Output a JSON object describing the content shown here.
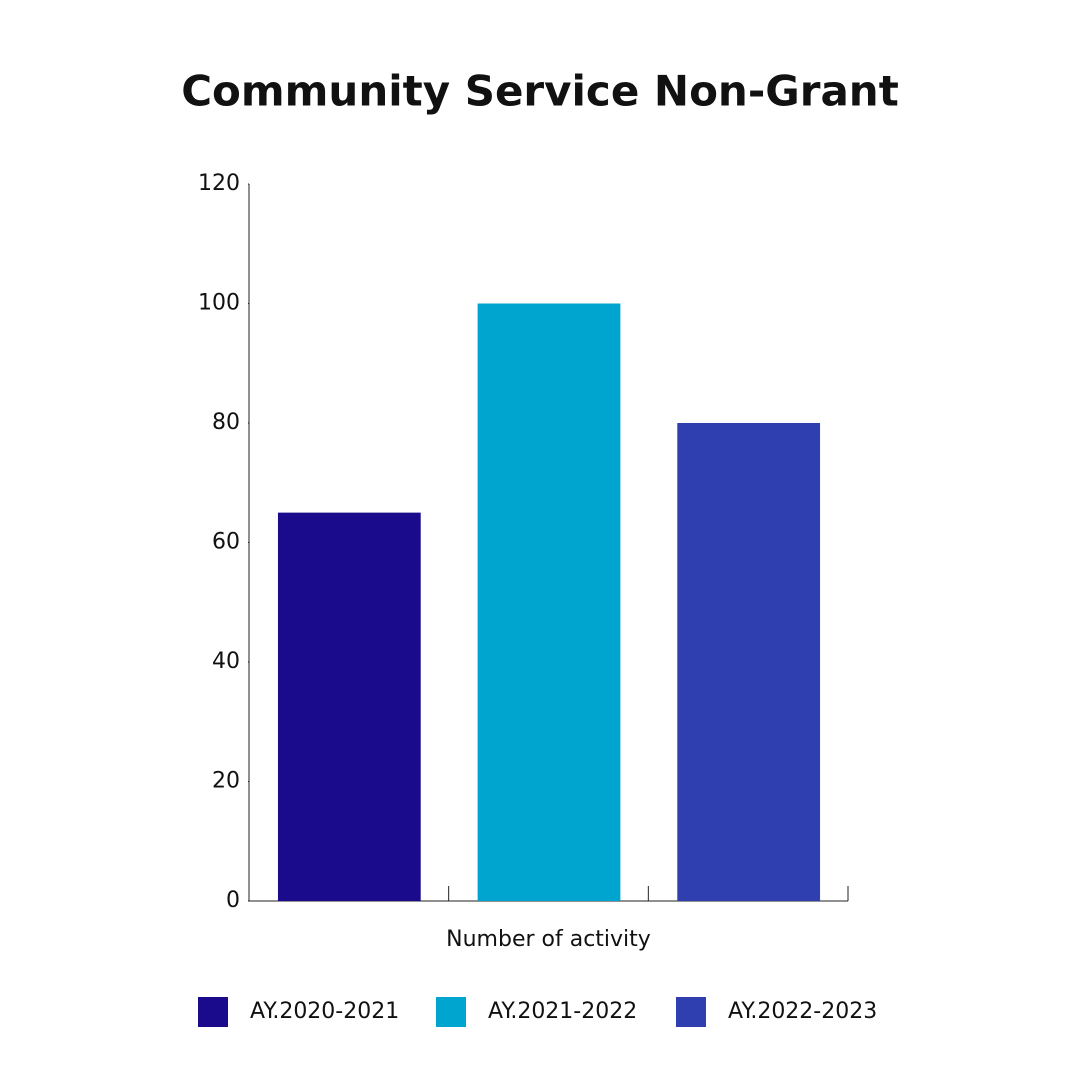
{
  "chart_data": {
    "type": "bar",
    "title": "Community Service Non-Grant",
    "categories": [
      "Number of activity"
    ],
    "series": [
      {
        "name": "AY.2020-2021",
        "color": "#1a0b8c",
        "values": [
          65
        ]
      },
      {
        "name": "AY.2021-2022",
        "color": "#00a5cf",
        "values": [
          100
        ]
      },
      {
        "name": "AY.2022-2023",
        "color": "#2f3fb0",
        "values": [
          80
        ]
      }
    ],
    "ylim": [
      0,
      120
    ],
    "yticks": [
      0,
      20,
      40,
      60,
      80,
      100,
      120
    ]
  }
}
